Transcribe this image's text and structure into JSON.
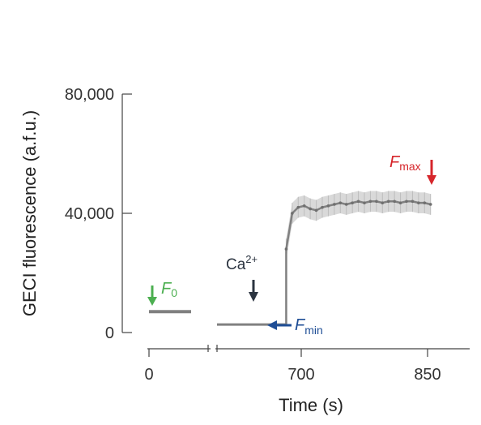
{
  "chart_data": {
    "type": "line",
    "xlabel": "Time (s)",
    "ylabel": "GECI fluorescence (a.f.u.)",
    "ylim": [
      0,
      80000
    ],
    "yticks": [
      "0",
      "40,000",
      "80,000"
    ],
    "yticks_values": [
      0,
      40000,
      80000
    ],
    "xticks": [
      "0",
      "700",
      "850"
    ],
    "xticks_values": [
      0,
      700,
      850
    ],
    "broken_x_axis": true,
    "segments": [
      {
        "x_range": [
          0,
          200
        ],
        "y": 7000,
        "label": "F0 baseline"
      },
      {
        "x_range": [
          500,
          615
        ],
        "y": 2700,
        "label": "Fmin baseline"
      },
      {
        "label": "Ca2+ response (mean ± error)",
        "x": [
          615,
          625,
          635,
          645,
          655,
          665,
          675,
          685,
          695,
          705,
          715,
          725,
          735,
          745,
          755,
          765,
          775,
          785,
          795,
          805,
          815,
          825,
          835,
          845,
          855
        ],
        "y": [
          28000,
          40000,
          42000,
          42500,
          41500,
          41000,
          42000,
          42500,
          43000,
          43500,
          43000,
          43500,
          44000,
          43500,
          44000,
          44000,
          43500,
          44000,
          44000,
          43500,
          44000,
          44000,
          43500,
          43500,
          43000
        ],
        "err": [
          3500,
          3500,
          3500,
          3500,
          3500,
          3500,
          3500,
          3500,
          3500,
          3500,
          3500,
          3500,
          3500,
          3500,
          3500,
          3500,
          3500,
          3500,
          3500,
          3500,
          3500,
          3500,
          3500,
          3500,
          3500
        ]
      }
    ],
    "annotations": [
      {
        "text_main": "F",
        "text_sub": "0",
        "color": "#4caf50",
        "arrow": "down",
        "at": "F0"
      },
      {
        "text_main": "F",
        "text_sub": "min",
        "color": "#1f4e96",
        "arrow": "left",
        "at": "Fmin"
      },
      {
        "text_main": "F",
        "text_sub": "max",
        "color": "#d6262b",
        "arrow": "down",
        "at": "Fmax"
      },
      {
        "text_main": "Ca",
        "text_sup": "2+",
        "color": "#2b3440",
        "arrow": "down",
        "at": "Ca2+ addition"
      }
    ],
    "colors": {
      "line": "#808080",
      "error_band": "#d9d9d9",
      "axis": "#444444"
    }
  }
}
